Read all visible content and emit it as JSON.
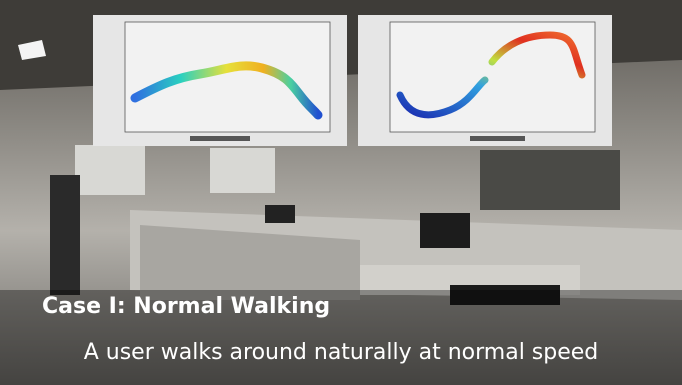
{
  "caption": {
    "title": "Case I: Normal Walking",
    "subtitle": "A user walks around naturally at normal speed"
  }
}
